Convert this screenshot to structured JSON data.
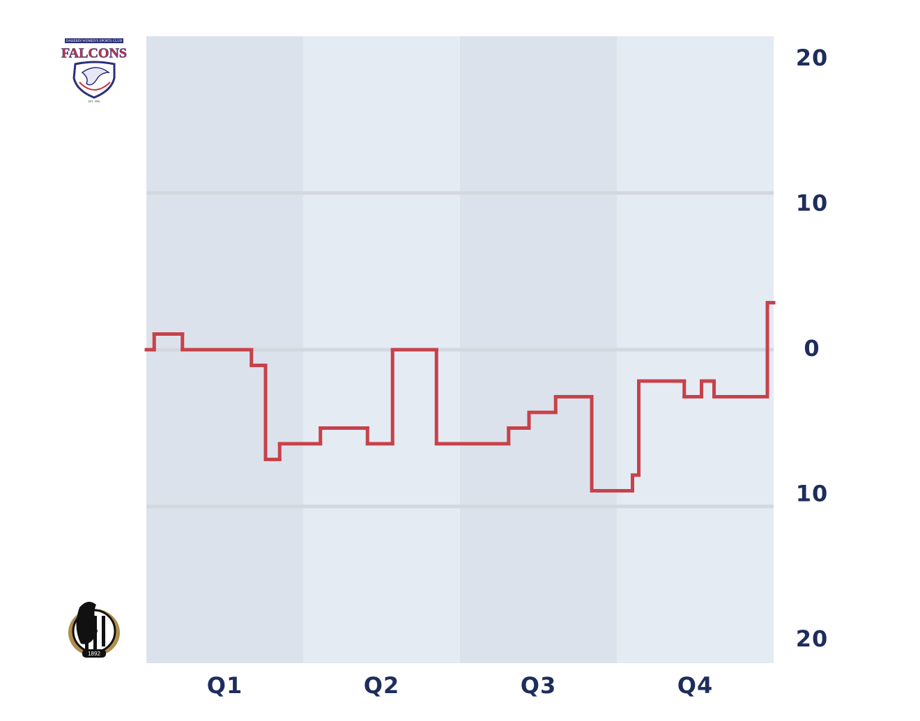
{
  "chart_data": {
    "type": "step",
    "categories": [
      "Q1",
      "Q2",
      "Q3",
      "Q4"
    ],
    "band_colors": [
      "#dce2eb",
      "#e4ebf3"
    ],
    "xlim": [
      0,
      4
    ],
    "ylim": [
      -20,
      20
    ],
    "yticks": [
      {
        "value": -20,
        "label": "20"
      },
      {
        "value": -10,
        "label": "10"
      },
      0,
      10,
      20
    ],
    "grid": true,
    "series": [
      {
        "color": "#c8414a",
        "x": [
          0,
          0.05,
          0.23,
          0.67,
          0.76,
          0.85,
          1.11,
          1.41,
          1.57,
          1.85,
          2.31,
          2.44,
          2.61,
          2.84,
          3.1,
          3.14,
          3.43,
          3.54,
          3.62,
          3.96
        ],
        "values": [
          0,
          1,
          0,
          -1,
          -7,
          -6,
          -5,
          -6,
          0,
          -6,
          -5,
          -4,
          -3,
          -9,
          -8,
          -2,
          -3,
          -2,
          -3,
          3
        ]
      }
    ]
  },
  "logos": {
    "top": [
      "DAREBIN WOMEN'S SPORTS CLUB",
      "FALCONS",
      "EST. 1990"
    ],
    "bottom": [
      "1892"
    ]
  }
}
